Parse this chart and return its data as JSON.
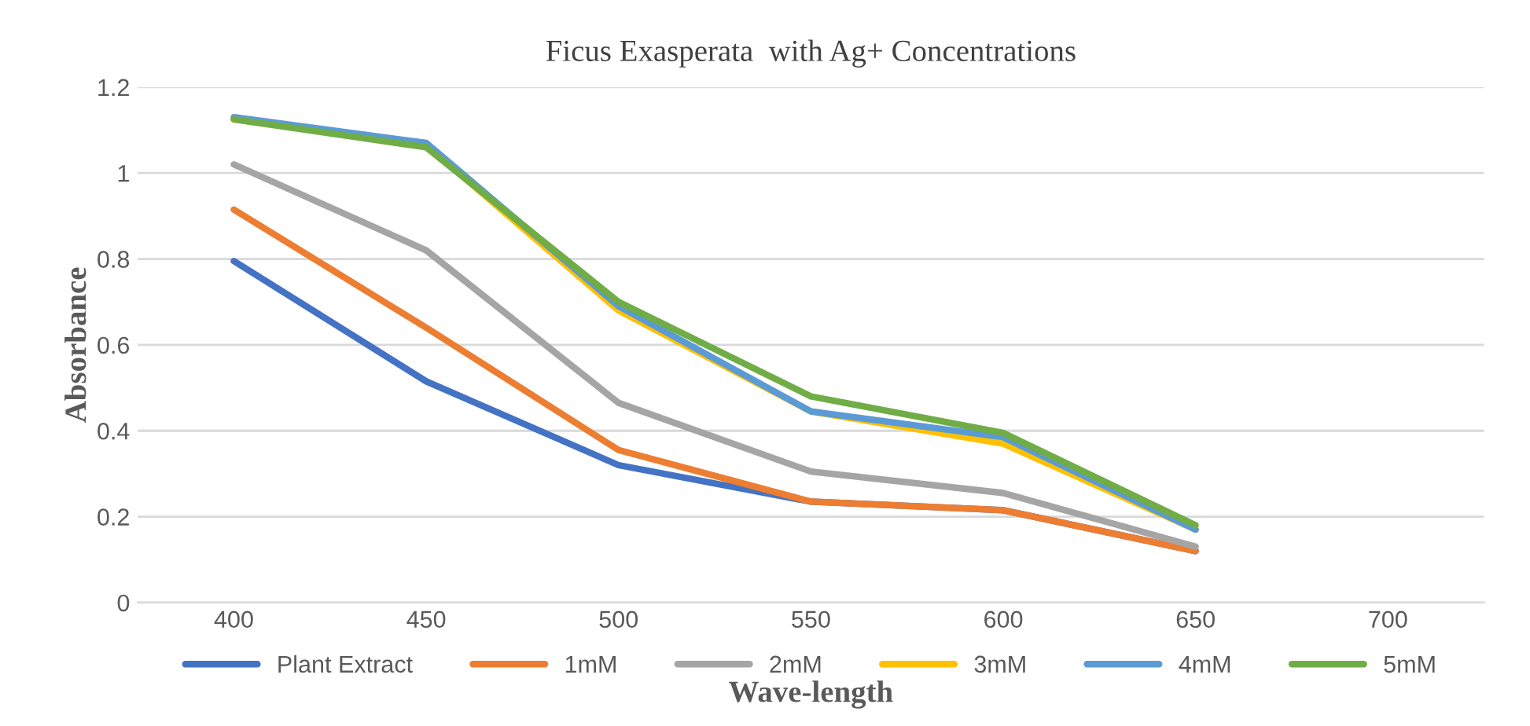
{
  "chart_data": {
    "type": "line",
    "title": "Ficus Exasperata  with Ag+ Concentrations",
    "xlabel": "Wave-length",
    "ylabel": "Absorbance",
    "categories": [
      "400",
      "450",
      "500",
      "550",
      "600",
      "650",
      "700"
    ],
    "series": [
      {
        "name": "Plant Extract",
        "color": "#4472c4",
        "values": [
          0.795,
          0.515,
          0.32,
          0.235,
          0.215,
          0.12,
          null
        ]
      },
      {
        "name": "1mM",
        "color": "#ed7d31",
        "values": [
          0.915,
          0.64,
          0.355,
          0.235,
          0.215,
          0.12,
          null
        ]
      },
      {
        "name": "2mM",
        "color": "#a5a5a5",
        "values": [
          1.02,
          0.82,
          0.465,
          0.305,
          0.255,
          0.13,
          null
        ]
      },
      {
        "name": "3mM",
        "color": "#ffc000",
        "values": [
          1.125,
          1.065,
          0.68,
          0.445,
          0.37,
          0.17,
          null
        ]
      },
      {
        "name": "4mM",
        "color": "#5b9bd5",
        "values": [
          1.13,
          1.07,
          0.69,
          0.445,
          0.385,
          0.17,
          null
        ]
      },
      {
        "name": "5mM",
        "color": "#70ad47",
        "values": [
          1.125,
          1.06,
          0.7,
          0.48,
          0.395,
          0.18,
          null
        ]
      }
    ],
    "ylim": [
      0,
      1.2
    ],
    "yticks": [
      0,
      0.2,
      0.4,
      0.6,
      0.8,
      1,
      1.2
    ],
    "grid": "y",
    "legend": "bottom",
    "marker": "none",
    "line_style": "solid"
  }
}
